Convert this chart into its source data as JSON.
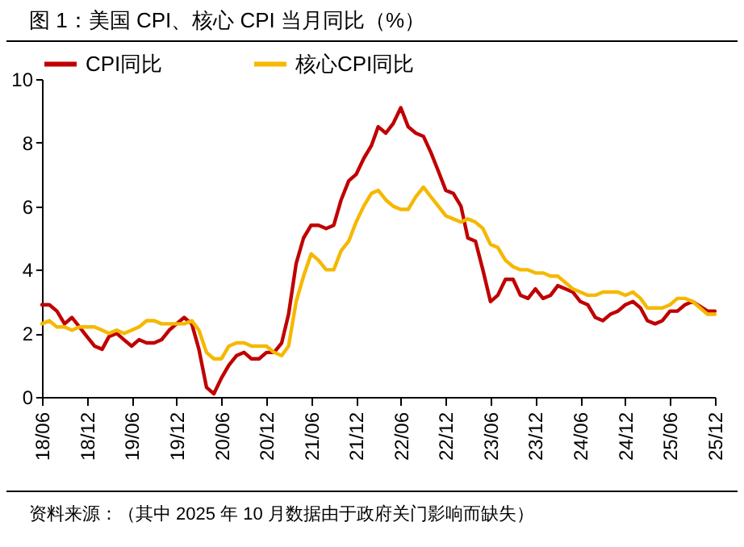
{
  "chart_data": {
    "type": "line",
    "title": "图 1：美国 CPI、核心 CPI 当月同比（%）",
    "annotations": [
      "资料来源：（其中 2025 年 10 月数据由于政府关门影响而缺失）"
    ],
    "x": [
      "2018-06",
      "2018-07",
      "2018-08",
      "2018-09",
      "2018-10",
      "2018-11",
      "2018-12",
      "2019-01",
      "2019-02",
      "2019-03",
      "2019-04",
      "2019-05",
      "2019-06",
      "2019-07",
      "2019-08",
      "2019-09",
      "2019-10",
      "2019-11",
      "2019-12",
      "2020-01",
      "2020-02",
      "2020-03",
      "2020-04",
      "2020-05",
      "2020-06",
      "2020-07",
      "2020-08",
      "2020-09",
      "2020-10",
      "2020-11",
      "2020-12",
      "2021-01",
      "2021-02",
      "2021-03",
      "2021-04",
      "2021-05",
      "2021-06",
      "2021-07",
      "2021-08",
      "2021-09",
      "2021-10",
      "2021-11",
      "2021-12",
      "2022-01",
      "2022-02",
      "2022-03",
      "2022-04",
      "2022-05",
      "2022-06",
      "2022-07",
      "2022-08",
      "2022-09",
      "2022-10",
      "2022-11",
      "2022-12",
      "2023-01",
      "2023-02",
      "2023-03",
      "2023-04",
      "2023-05",
      "2023-06",
      "2023-07",
      "2023-08",
      "2023-09",
      "2023-10",
      "2023-11",
      "2023-12",
      "2024-01",
      "2024-02",
      "2024-03",
      "2024-04",
      "2024-05",
      "2024-06",
      "2024-07",
      "2024-08",
      "2024-09",
      "2024-10",
      "2024-11",
      "2024-12",
      "2025-01",
      "2025-02",
      "2025-03",
      "2025-04",
      "2025-05",
      "2025-06",
      "2025-07",
      "2025-08",
      "2025-09",
      "2025-10",
      "2025-11",
      "2025-12"
    ],
    "series": [
      {
        "name": "CPI同比",
        "color": "#c00000",
        "values": [
          2.9,
          2.9,
          2.7,
          2.3,
          2.5,
          2.2,
          1.9,
          1.6,
          1.5,
          1.9,
          2.0,
          1.8,
          1.6,
          1.8,
          1.7,
          1.7,
          1.8,
          2.1,
          2.3,
          2.5,
          2.3,
          1.5,
          0.3,
          0.1,
          0.6,
          1.0,
          1.3,
          1.4,
          1.2,
          1.2,
          1.4,
          1.4,
          1.7,
          2.6,
          4.2,
          5.0,
          5.4,
          5.4,
          5.3,
          5.4,
          6.2,
          6.8,
          7.0,
          7.5,
          7.9,
          8.5,
          8.3,
          8.6,
          9.1,
          8.5,
          8.3,
          8.2,
          7.7,
          7.1,
          6.5,
          6.4,
          6.0,
          5.0,
          4.9,
          4.0,
          3.0,
          3.2,
          3.7,
          3.7,
          3.2,
          3.1,
          3.4,
          3.1,
          3.2,
          3.5,
          3.4,
          3.3,
          3.0,
          2.9,
          2.5,
          2.4,
          2.6,
          2.7,
          2.9,
          3.0,
          2.8,
          2.4,
          2.3,
          2.4,
          2.7,
          2.7,
          2.9,
          3.0,
          null,
          2.7,
          2.7
        ]
      },
      {
        "name": "核心CPI同比",
        "color": "#f5b800",
        "values": [
          2.3,
          2.4,
          2.2,
          2.2,
          2.1,
          2.2,
          2.2,
          2.2,
          2.1,
          2.0,
          2.1,
          2.0,
          2.1,
          2.2,
          2.4,
          2.4,
          2.3,
          2.3,
          2.3,
          2.3,
          2.4,
          2.1,
          1.4,
          1.2,
          1.2,
          1.6,
          1.7,
          1.7,
          1.6,
          1.6,
          1.6,
          1.4,
          1.3,
          1.6,
          3.0,
          3.8,
          4.5,
          4.3,
          4.0,
          4.0,
          4.6,
          4.9,
          5.5,
          6.0,
          6.4,
          6.5,
          6.2,
          6.0,
          5.9,
          5.9,
          6.3,
          6.6,
          6.3,
          6.0,
          5.7,
          5.6,
          5.5,
          5.6,
          5.5,
          5.3,
          4.8,
          4.7,
          4.3,
          4.1,
          4.0,
          4.0,
          3.9,
          3.9,
          3.8,
          3.8,
          3.6,
          3.4,
          3.3,
          3.2,
          3.2,
          3.3,
          3.3,
          3.3,
          3.2,
          3.3,
          3.1,
          2.8,
          2.8,
          2.8,
          2.9,
          3.1,
          3.1,
          3.0,
          null,
          2.6,
          2.6
        ]
      }
    ],
    "xlim": [
      "2018-06",
      "2025-12"
    ],
    "xticks": [
      {
        "value": "2018-06",
        "label": "18/06"
      },
      {
        "value": "2018-12",
        "label": "18/12"
      },
      {
        "value": "2019-06",
        "label": "19/06"
      },
      {
        "value": "2019-12",
        "label": "19/12"
      },
      {
        "value": "2020-06",
        "label": "20/06"
      },
      {
        "value": "2020-12",
        "label": "20/12"
      },
      {
        "value": "2021-06",
        "label": "21/06"
      },
      {
        "value": "2021-12",
        "label": "21/12"
      },
      {
        "value": "2022-06",
        "label": "22/06"
      },
      {
        "value": "2022-12",
        "label": "22/12"
      },
      {
        "value": "2023-06",
        "label": "23/06"
      },
      {
        "value": "2023-12",
        "label": "23/12"
      },
      {
        "value": "2024-06",
        "label": "24/06"
      },
      {
        "value": "2024-12",
        "label": "24/12"
      },
      {
        "value": "2025-06",
        "label": "25/06"
      },
      {
        "value": "2025-12",
        "label": "25/12"
      }
    ],
    "ylim": [
      0,
      10
    ],
    "yticks": [
      0,
      2,
      4,
      6,
      8,
      10
    ],
    "grid": false,
    "legend": "top",
    "marker": "none",
    "line_style": "solid"
  }
}
